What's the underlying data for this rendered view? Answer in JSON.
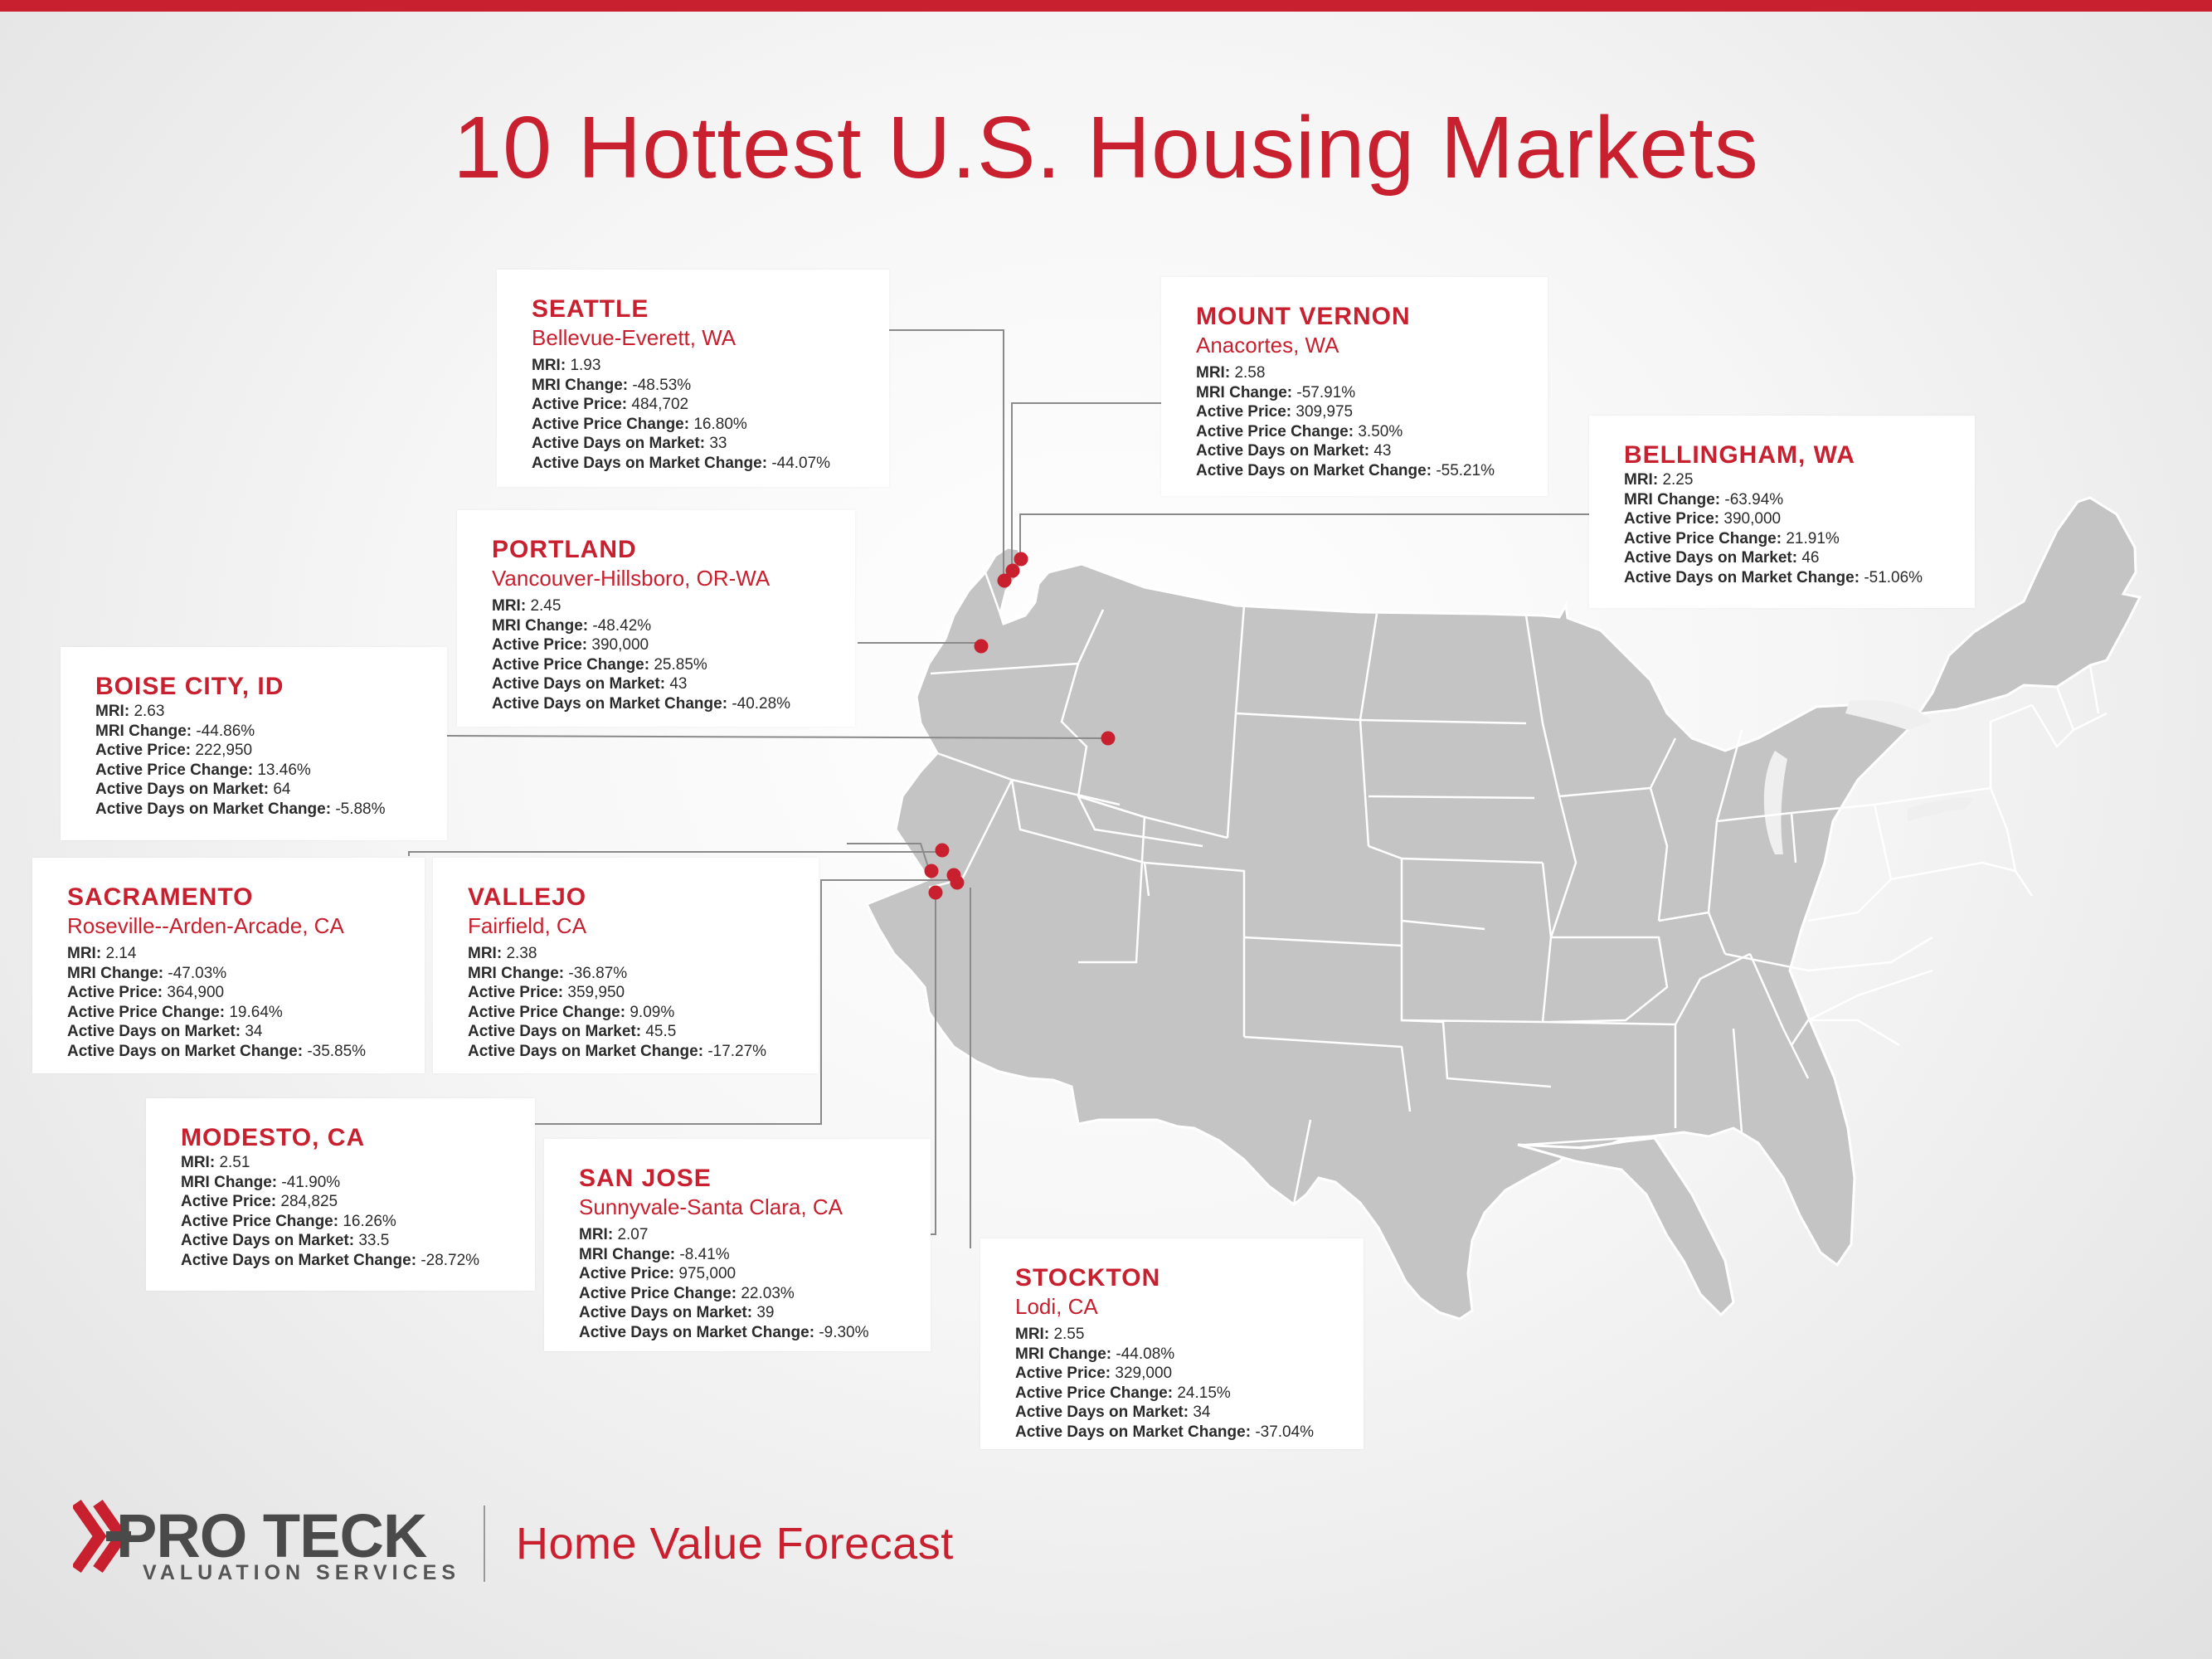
{
  "title": "10 Hottest U.S. Housing Markets",
  "accent_color": "#c8202f",
  "map_color": "#c4c4c4",
  "markets": [
    {
      "id": "seattle",
      "city": "SEATTLE",
      "sub": "Bellevue-Everett, WA",
      "mri": "1.93",
      "mri_change": "-48.53%",
      "active_price": "484,702",
      "active_price_change": "16.80%",
      "days": "33",
      "days_change": "-44.07%"
    },
    {
      "id": "mount-vernon",
      "city": "MOUNT VERNON",
      "sub": "Anacortes, WA",
      "mri": "2.58",
      "mri_change": "-57.91%",
      "active_price": "309,975",
      "active_price_change": "3.50%",
      "days": "43",
      "days_change": "-55.21%"
    },
    {
      "id": "bellingham",
      "city": "BELLINGHAM, WA",
      "sub": "",
      "mri": "2.25",
      "mri_change": "-63.94%",
      "active_price": "390,000",
      "active_price_change": "21.91%",
      "days": "46",
      "days_change": "-51.06%"
    },
    {
      "id": "portland",
      "city": "PORTLAND",
      "sub": "Vancouver-Hillsboro, OR-WA",
      "mri": "2.45",
      "mri_change": "-48.42%",
      "active_price": "390,000",
      "active_price_change": "25.85%",
      "days": "43",
      "days_change": "-40.28%"
    },
    {
      "id": "boise",
      "city": "BOISE CITY, ID",
      "sub": "",
      "mri": "2.63",
      "mri_change": "-44.86%",
      "active_price": "222,950",
      "active_price_change": "13.46%",
      "days": "64",
      "days_change": "-5.88%"
    },
    {
      "id": "sacramento",
      "city": "SACRAMENTO",
      "sub": "Roseville--Arden-Arcade, CA",
      "mri": "2.14",
      "mri_change": "-47.03%",
      "active_price": "364,900",
      "active_price_change": "19.64%",
      "days": "34",
      "days_change": "-35.85%"
    },
    {
      "id": "vallejo",
      "city": "VALLEJO",
      "sub": "Fairfield, CA",
      "mri": "2.38",
      "mri_change": "-36.87%",
      "active_price": "359,950",
      "active_price_change": "9.09%",
      "days": "45.5",
      "days_change": "-17.27%"
    },
    {
      "id": "modesto",
      "city": "MODESTO, CA",
      "sub": "",
      "mri": "2.51",
      "mri_change": "-41.90%",
      "active_price": "284,825",
      "active_price_change": "16.26%",
      "days": "33.5",
      "days_change": "-28.72%"
    },
    {
      "id": "san-jose",
      "city": "SAN JOSE",
      "sub": "Sunnyvale-Santa Clara, CA",
      "mri": "2.07",
      "mri_change": "-8.41%",
      "active_price": "975,000",
      "active_price_change": "22.03%",
      "days": "39",
      "days_change": "-9.30%"
    },
    {
      "id": "stockton",
      "city": "STOCKTON",
      "sub": "Lodi, CA",
      "mri": "2.55",
      "mri_change": "-44.08%",
      "active_price": "329,000",
      "active_price_change": "24.15%",
      "days": "34",
      "days_change": "-37.04%"
    }
  ],
  "labels": {
    "mri": "MRI:",
    "mri_change": "MRI Change:",
    "active_price": "Active Price:",
    "active_price_change": "Active Price Change:",
    "days": "Active Days on Market:",
    "days_change": "Active Days on Market Change:"
  },
  "footer": {
    "brand": "PRO TECK",
    "brand_sub": "VALUATION SERVICES",
    "forecast": "Home Value Forecast"
  }
}
